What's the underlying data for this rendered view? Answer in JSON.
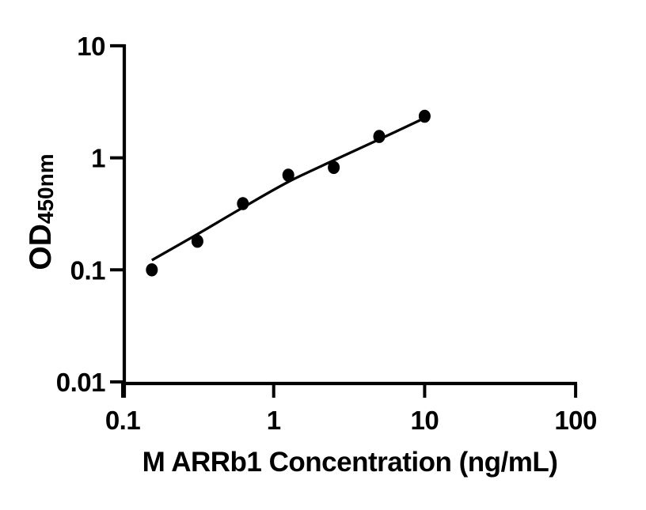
{
  "figure": {
    "background_color": "#ffffff",
    "ink_color": "#000000"
  },
  "chart_data": {
    "type": "scatter",
    "title": "",
    "xlabel": "M ARRb1 Concentration (ng/mL)",
    "ylabel": "OD",
    "ylabel_subscript": "450nm",
    "x_scale": "log10",
    "y_scale": "log10",
    "xlim": [
      0.1,
      100
    ],
    "ylim": [
      0.01,
      10
    ],
    "x_ticks": [
      0.1,
      1,
      10,
      100
    ],
    "x_tick_labels": [
      "0.1",
      "1",
      "10",
      "100"
    ],
    "y_ticks": [
      10,
      1,
      0.1,
      0.01
    ],
    "y_tick_labels": [
      "10",
      "1",
      "0.1",
      "0.01"
    ],
    "grid": false,
    "legend": false,
    "series": [
      {
        "name": "standard-data-points",
        "type": "scatter",
        "marker": "filled-circle",
        "color": "#000000",
        "x": [
          0.156,
          0.3125,
          0.625,
          1.25,
          2.5,
          5,
          10
        ],
        "y": [
          0.1,
          0.18,
          0.39,
          0.7,
          0.82,
          1.55,
          2.35
        ]
      },
      {
        "name": "fitted-curve",
        "type": "line",
        "color": "#000000",
        "x": [
          0.156,
          0.3125,
          0.625,
          1.25,
          2.5,
          5,
          10
        ],
        "y": [
          0.122,
          0.208,
          0.36,
          0.61,
          0.95,
          1.46,
          2.27
        ]
      }
    ]
  }
}
